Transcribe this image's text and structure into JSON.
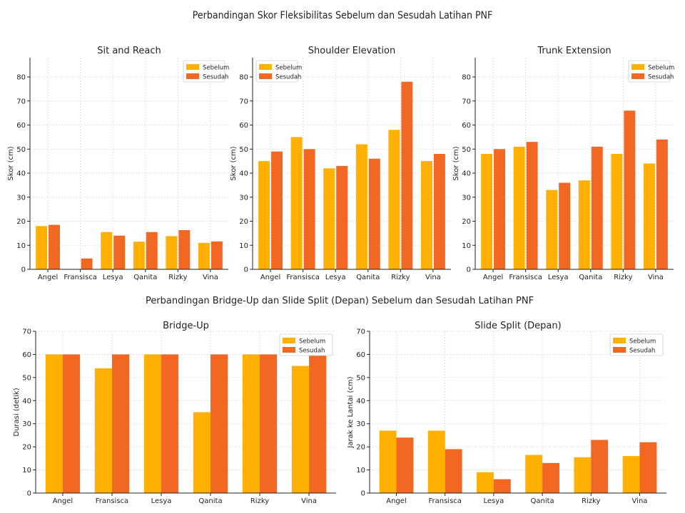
{
  "suptitle_top": "Perbandingan Skor Fleksibilitas Sebelum dan Sesudah Latihan PNF",
  "suptitle_bottom": "Perbandingan Bridge-Up dan Slide Split (Depan) Sebelum dan Sesudah Latihan PNF",
  "colors": {
    "sebelum": "#FFB000",
    "sesudah": "#F26722",
    "grid": "#d9d9d9"
  },
  "chart_data": [
    {
      "type": "bar",
      "title": "Sit and Reach",
      "xlabel": "",
      "ylabel": "Skor (cm)",
      "ylim": [
        0,
        88
      ],
      "yticks": [
        0,
        10,
        20,
        30,
        40,
        50,
        60,
        70,
        80
      ],
      "grid": true,
      "legend": "top-right",
      "categories": [
        "Angel",
        "Fransisca",
        "Lesya",
        "Qanita",
        "Rizky",
        "Vina"
      ],
      "series": [
        {
          "name": "Sebelum",
          "values": [
            18,
            0,
            15.5,
            11.5,
            13.8,
            11
          ]
        },
        {
          "name": "Sesudah",
          "values": [
            18.5,
            4.5,
            14,
            15.5,
            16.3,
            11.6
          ]
        }
      ]
    },
    {
      "type": "bar",
      "title": "Shoulder Elevation",
      "xlabel": "",
      "ylabel": "Skor (cm)",
      "ylim": [
        0,
        88
      ],
      "yticks": [
        0,
        10,
        20,
        30,
        40,
        50,
        60,
        70,
        80
      ],
      "grid": true,
      "legend": "top-left",
      "categories": [
        "Angel",
        "Fransisca",
        "Lesya",
        "Qanita",
        "Rizky",
        "Vina"
      ],
      "series": [
        {
          "name": "Sebelum",
          "values": [
            45,
            55,
            42,
            52,
            58,
            45
          ]
        },
        {
          "name": "Sesudah",
          "values": [
            49,
            50,
            43,
            46,
            78,
            48
          ]
        }
      ]
    },
    {
      "type": "bar",
      "title": "Trunk Extension",
      "xlabel": "",
      "ylabel": "Skor (cm)",
      "ylim": [
        0,
        88
      ],
      "yticks": [
        0,
        10,
        20,
        30,
        40,
        50,
        60,
        70,
        80
      ],
      "grid": true,
      "legend": "top-right",
      "categories": [
        "Angel",
        "Fransisca",
        "Lesya",
        "Qanita",
        "Rizky",
        "Vina"
      ],
      "series": [
        {
          "name": "Sebelum",
          "values": [
            48,
            51,
            33,
            37,
            48,
            44
          ]
        },
        {
          "name": "Sesudah",
          "values": [
            50,
            53,
            36,
            51,
            66,
            54
          ]
        }
      ]
    },
    {
      "type": "bar",
      "title": "Bridge-Up",
      "xlabel": "",
      "ylabel": "Durasi (detik)",
      "ylim": [
        0,
        70
      ],
      "yticks": [
        0,
        10,
        20,
        30,
        40,
        50,
        60,
        70
      ],
      "grid": true,
      "legend": "top-right",
      "categories": [
        "Angel",
        "Fransisca",
        "Lesya",
        "Qanita",
        "Rizky",
        "Vina"
      ],
      "series": [
        {
          "name": "Sebelum",
          "values": [
            60,
            54,
            60,
            35,
            60,
            55
          ]
        },
        {
          "name": "Sesudah",
          "values": [
            60,
            60,
            60,
            60,
            60,
            60
          ]
        }
      ]
    },
    {
      "type": "bar",
      "title": "Slide Split (Depan)",
      "xlabel": "",
      "ylabel": "Jarak ke Lantai (cm)",
      "ylim": [
        0,
        70
      ],
      "yticks": [
        0,
        10,
        20,
        30,
        40,
        50,
        60,
        70
      ],
      "grid": true,
      "legend": "top-right",
      "categories": [
        "Angel",
        "Fransisca",
        "Lesya",
        "Qanita",
        "Rizky",
        "Vina"
      ],
      "series": [
        {
          "name": "Sebelum",
          "values": [
            27,
            27,
            9,
            16.5,
            15.5,
            16
          ]
        },
        {
          "name": "Sesudah",
          "values": [
            24,
            19,
            6,
            13,
            23,
            22
          ]
        }
      ]
    }
  ]
}
